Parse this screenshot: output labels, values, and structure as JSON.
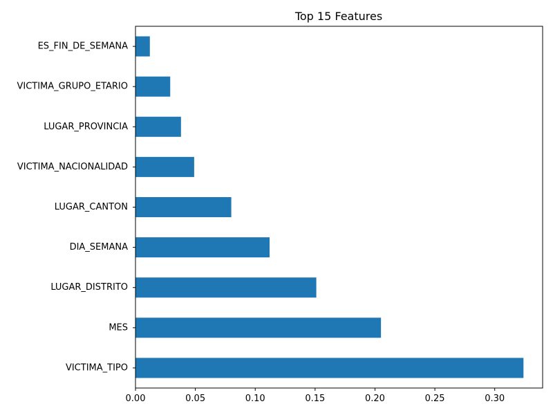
{
  "chart_data": {
    "type": "bar",
    "orientation": "horizontal",
    "title": "Top 15 Features",
    "xlabel": "",
    "ylabel": "",
    "categories": [
      "VICTIMA_TIPO",
      "MES",
      "LUGAR_DISTRITO",
      "DIA_SEMANA",
      "LUGAR_CANTON",
      "VICTIMA_NACIONALIDAD",
      "LUGAR_PROVINCIA",
      "VICTIMA_GRUPO_ETARIO",
      "ES_FIN_DE_SEMANA"
    ],
    "values": [
      0.324,
      0.205,
      0.151,
      0.112,
      0.08,
      0.049,
      0.038,
      0.029,
      0.012
    ],
    "xlim": [
      0,
      0.34
    ],
    "xticks": [
      0.0,
      0.05,
      0.1,
      0.15,
      0.2,
      0.25,
      0.3
    ],
    "xtick_labels": [
      "0.00",
      "0.05",
      "0.10",
      "0.15",
      "0.20",
      "0.25",
      "0.30"
    ],
    "grid": false,
    "bar_color": "#1f77b4"
  }
}
